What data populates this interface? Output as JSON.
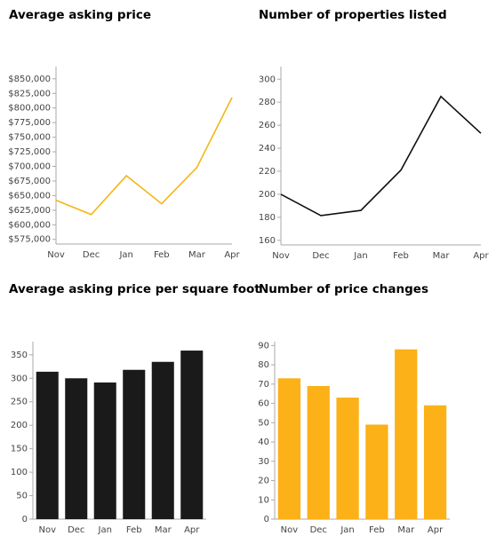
{
  "chart_data": [
    {
      "type": "line",
      "title": "Average asking price",
      "categories": [
        "Nov",
        "Dec",
        "Jan",
        "Feb",
        "Mar",
        "Apr"
      ],
      "values": [
        642000,
        617500,
        684000,
        636000,
        698000,
        818000
      ],
      "color": "#f5b614",
      "ylim": [
        567000,
        871000
      ],
      "yticks": [
        {
          "value": 575000,
          "label": "$575,000"
        },
        {
          "value": 600000,
          "label": "$600,000"
        },
        {
          "value": 625000,
          "label": "$625,000"
        },
        {
          "value": 650000,
          "label": "$650,000"
        },
        {
          "value": 675000,
          "label": "$675,000"
        },
        {
          "value": 700000,
          "label": "$700,000"
        },
        {
          "value": 725000,
          "label": "$725,000"
        },
        {
          "value": 750000,
          "label": "$750,000"
        },
        {
          "value": 775000,
          "label": "$775,000"
        },
        {
          "value": 800000,
          "label": "$800,000"
        },
        {
          "value": 825000,
          "label": "$825,000"
        },
        {
          "value": 850000,
          "label": "$850,000"
        }
      ]
    },
    {
      "type": "line",
      "title": "Number of properties listed",
      "categories": [
        "Nov",
        "Dec",
        "Jan",
        "Feb",
        "Mar",
        "Apr"
      ],
      "values": [
        200,
        181.5,
        186,
        221,
        285,
        253
      ],
      "color": "#111111",
      "ylim": [
        156,
        311
      ],
      "yticks": [
        160,
        180,
        200,
        220,
        240,
        260,
        280,
        300
      ]
    },
    {
      "type": "bar",
      "title": "Average asking price per square foot",
      "categories": [
        "Nov",
        "Dec",
        "Jan",
        "Feb",
        "Mar",
        "Apr"
      ],
      "values": [
        314,
        300,
        291,
        318,
        335,
        359
      ],
      "color": "#1a1a1a",
      "ylim": [
        0,
        378
      ],
      "yticks": [
        0,
        50,
        100,
        150,
        200,
        250,
        300,
        350
      ]
    },
    {
      "type": "bar",
      "title": "Number of price changes",
      "categories": [
        "Nov",
        "Dec",
        "Jan",
        "Feb",
        "Mar",
        "Apr"
      ],
      "values": [
        73,
        69,
        63,
        49,
        88,
        59
      ],
      "color": "#fbb117",
      "ylim": [
        0,
        92
      ],
      "yticks": [
        0,
        10,
        20,
        30,
        40,
        50,
        60,
        70,
        80,
        90
      ]
    }
  ]
}
